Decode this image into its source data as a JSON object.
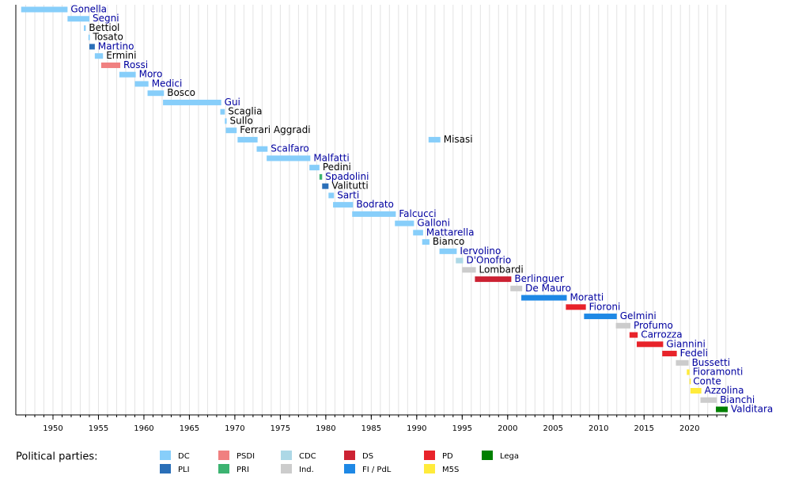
{
  "chart_data": {
    "type": "timeline",
    "xlim": [
      1946,
      2024.2
    ],
    "xticks": [
      1950,
      1955,
      1960,
      1965,
      1970,
      1975,
      1980,
      1985,
      1990,
      1995,
      2000,
      2005,
      2010,
      2015,
      2020
    ],
    "xgrid": [
      1947,
      1948,
      1949,
      1950,
      1951,
      1952,
      1953,
      1954,
      1955,
      1956,
      1957,
      1958,
      1959,
      1960,
      1961,
      1962,
      1963,
      1964,
      1965,
      1966,
      1967,
      1968,
      1969,
      1970,
      1971,
      1972,
      1973,
      1974,
      1975,
      1976,
      1977,
      1978,
      1979,
      1980,
      1981,
      1982,
      1983,
      1984,
      1985,
      1986,
      1987,
      1988,
      1989,
      1990,
      1991,
      1992,
      1993,
      1994,
      1995,
      1996,
      1997,
      1998,
      1999,
      2000,
      2001,
      2002,
      2003,
      2004,
      2005,
      2006,
      2007,
      2008,
      2009,
      2010,
      2011,
      2012,
      2013,
      2014,
      2015,
      2016,
      2017,
      2018,
      2019,
      2020,
      2021,
      2022,
      2023,
      2024
    ],
    "rows": [
      {
        "name": "Gonella",
        "color": "#87cefa",
        "linked": true,
        "periods": [
          [
            1946.5,
            1951.6
          ]
        ]
      },
      {
        "name": "Segni",
        "color": "#87cefa",
        "linked": true,
        "periods": [
          [
            1951.6,
            1954.0
          ]
        ]
      },
      {
        "name": "Bettiol",
        "color": "#87cefa",
        "linked": false,
        "periods": [
          [
            1953.4,
            1953.6
          ]
        ]
      },
      {
        "name": "Tosato",
        "color": "#87cefa",
        "linked": false,
        "periods": [
          [
            1953.9,
            1954.05
          ]
        ]
      },
      {
        "name": "Martino",
        "color": "#2a6fb8",
        "linked": true,
        "periods": [
          [
            1954.0,
            1954.6
          ]
        ]
      },
      {
        "name": "Ermini",
        "color": "#87cefa",
        "linked": false,
        "periods": [
          [
            1954.6,
            1955.5
          ]
        ]
      },
      {
        "name": "Rossi",
        "color": "#f08080",
        "linked": true,
        "periods": [
          [
            1955.3,
            1957.4
          ]
        ]
      },
      {
        "name": "Moro",
        "color": "#87cefa",
        "linked": true,
        "periods": [
          [
            1957.3,
            1959.1
          ]
        ]
      },
      {
        "name": "Medici",
        "color": "#87cefa",
        "linked": true,
        "periods": [
          [
            1959.0,
            1960.5
          ]
        ]
      },
      {
        "name": "Bosco",
        "color": "#87cefa",
        "linked": false,
        "periods": [
          [
            1960.4,
            1962.2
          ]
        ]
      },
      {
        "name": "Gui",
        "color": "#87cefa",
        "linked": true,
        "periods": [
          [
            1962.1,
            1968.5
          ]
        ]
      },
      {
        "name": "Scaglia",
        "color": "#87cefa",
        "linked": false,
        "periods": [
          [
            1968.4,
            1968.9
          ]
        ]
      },
      {
        "name": "Sullo",
        "color": "#87cefa",
        "linked": false,
        "periods": [
          [
            1968.9,
            1969.1
          ]
        ]
      },
      {
        "name": "Ferrari Aggradi",
        "color": "#87cefa",
        "linked": false,
        "periods": [
          [
            1969.0,
            1970.2
          ]
        ]
      },
      {
        "name": "Misasi",
        "color": "#87cefa",
        "linked": false,
        "periods": [
          [
            1970.3,
            1972.5
          ],
          [
            1991.3,
            1992.6
          ]
        ]
      },
      {
        "name": "Scalfaro",
        "color": "#87cefa",
        "linked": true,
        "periods": [
          [
            1972.4,
            1973.6
          ]
        ]
      },
      {
        "name": "Malfatti",
        "color": "#87cefa",
        "linked": true,
        "periods": [
          [
            1973.5,
            1978.3
          ]
        ]
      },
      {
        "name": "Pedini",
        "color": "#87cefa",
        "linked": false,
        "periods": [
          [
            1978.2,
            1979.3
          ]
        ]
      },
      {
        "name": "Spadolini",
        "color": "#3cb371",
        "linked": true,
        "periods": [
          [
            1979.3,
            1979.6
          ]
        ]
      },
      {
        "name": "Valitutti",
        "color": "#2a6fb8",
        "linked": false,
        "periods": [
          [
            1979.6,
            1980.3
          ]
        ]
      },
      {
        "name": "Sarti",
        "color": "#87cefa",
        "linked": true,
        "periods": [
          [
            1980.3,
            1980.9
          ]
        ]
      },
      {
        "name": "Bodrato",
        "color": "#87cefa",
        "linked": true,
        "periods": [
          [
            1980.8,
            1983.0
          ]
        ]
      },
      {
        "name": "Falcucci",
        "color": "#87cefa",
        "linked": true,
        "periods": [
          [
            1982.9,
            1987.7
          ]
        ]
      },
      {
        "name": "Galloni",
        "color": "#87cefa",
        "linked": true,
        "periods": [
          [
            1987.6,
            1989.7
          ]
        ]
      },
      {
        "name": "Mattarella",
        "color": "#87cefa",
        "linked": true,
        "periods": [
          [
            1989.6,
            1990.7
          ]
        ]
      },
      {
        "name": "Bianco",
        "color": "#87cefa",
        "linked": false,
        "periods": [
          [
            1990.6,
            1991.4
          ]
        ]
      },
      {
        "name": "Iervolino",
        "color": "#87cefa",
        "linked": true,
        "periods": [
          [
            1992.5,
            1994.4
          ]
        ]
      },
      {
        "name": "D'Onofrio",
        "color": "#add8e6",
        "linked": true,
        "periods": [
          [
            1994.3,
            1995.1
          ]
        ]
      },
      {
        "name": "Lombardi",
        "color": "#cccccc",
        "linked": false,
        "periods": [
          [
            1995.0,
            1996.5
          ]
        ]
      },
      {
        "name": "Berlinguer",
        "color": "#cc2233",
        "linked": true,
        "periods": [
          [
            1996.4,
            2000.4
          ]
        ]
      },
      {
        "name": "De Mauro",
        "color": "#cccccc",
        "linked": true,
        "periods": [
          [
            2000.3,
            2001.6
          ]
        ]
      },
      {
        "name": "Moratti",
        "color": "#1e88e5",
        "linked": true,
        "periods": [
          [
            2001.5,
            2006.5
          ]
        ]
      },
      {
        "name": "Fioroni",
        "color": "#e8232a",
        "linked": true,
        "periods": [
          [
            2006.4,
            2008.6
          ]
        ]
      },
      {
        "name": "Gelmini",
        "color": "#1e88e5",
        "linked": true,
        "periods": [
          [
            2008.4,
            2012.0
          ]
        ]
      },
      {
        "name": "Profumo",
        "color": "#cccccc",
        "linked": true,
        "periods": [
          [
            2011.9,
            2013.5
          ]
        ]
      },
      {
        "name": "Carrozza",
        "color": "#e8232a",
        "linked": true,
        "periods": [
          [
            2013.4,
            2014.3
          ]
        ]
      },
      {
        "name": "Giannini",
        "color": "#e8232a",
        "linked": true,
        "periods": [
          [
            2014.2,
            2017.1
          ]
        ]
      },
      {
        "name": "Fedeli",
        "color": "#e8232a",
        "linked": true,
        "periods": [
          [
            2017.0,
            2018.6
          ]
        ]
      },
      {
        "name": "Bussetti",
        "color": "#cccccc",
        "linked": true,
        "periods": [
          [
            2018.5,
            2019.9
          ]
        ]
      },
      {
        "name": "Fioramonti",
        "color": "#ffeb3b",
        "linked": true,
        "periods": [
          [
            2019.7,
            2020.0
          ]
        ]
      },
      {
        "name": "Conte",
        "color": "#ffeb3b",
        "linked": true,
        "periods": [
          [
            2020.0,
            2020.05
          ]
        ]
      },
      {
        "name": "Azzolina",
        "color": "#ffeb3b",
        "linked": true,
        "periods": [
          [
            2020.1,
            2021.3
          ]
        ]
      },
      {
        "name": "Bianchi",
        "color": "#cccccc",
        "linked": true,
        "periods": [
          [
            2021.2,
            2023.0
          ]
        ]
      },
      {
        "name": "Valditara",
        "color": "#008000",
        "linked": true,
        "periods": [
          [
            2022.9,
            2024.2
          ]
        ]
      }
    ],
    "legend_title": "Political parties:",
    "legend": [
      {
        "name": "DC",
        "color": "#87cefa"
      },
      {
        "name": "PLI",
        "color": "#2a6fb8"
      },
      {
        "name": "PSDI",
        "color": "#f08080"
      },
      {
        "name": "PRI",
        "color": "#3cb371"
      },
      {
        "name": "CDC",
        "color": "#add8e6"
      },
      {
        "name": "Ind.",
        "color": "#cccccc"
      },
      {
        "name": "DS",
        "color": "#cc2233"
      },
      {
        "name": "FI / PdL",
        "color": "#1e88e5"
      },
      {
        "name": "PD",
        "color": "#e8232a"
      },
      {
        "name": "M5S",
        "color": "#ffeb3b"
      },
      {
        "name": "Lega",
        "color": "#008000"
      }
    ]
  }
}
